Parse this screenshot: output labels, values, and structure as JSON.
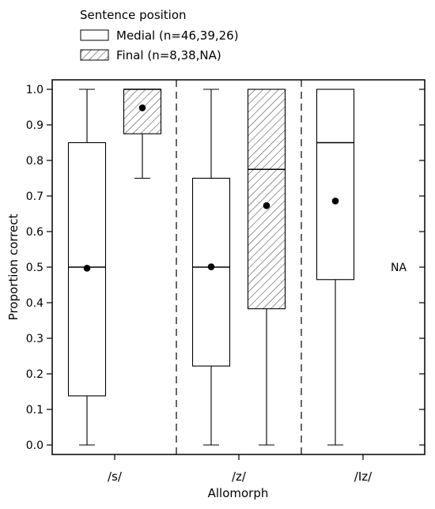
{
  "chart_data": {
    "type": "boxplot",
    "ylabel": "Proportion correct",
    "xlabel": "Allomorph",
    "ylim": [
      0,
      1
    ],
    "yticks": [
      0.0,
      0.1,
      0.2,
      0.3,
      0.4,
      0.5,
      0.6,
      0.7,
      0.8,
      0.9,
      1.0
    ],
    "ytick_labels": [
      "0.0",
      "0.1",
      "0.2",
      "0.3",
      "0.4",
      "0.5",
      "0.6",
      "0.7",
      "0.8",
      "0.9",
      "1.0"
    ],
    "categories": [
      "/s/",
      "/z/",
      "/Iz/"
    ],
    "legend": {
      "title": "Sentence position",
      "entries": [
        {
          "label": "Medial (n=46,39,26)",
          "fill": "none"
        },
        {
          "label": "Final (n=8,38,NA)",
          "fill": "hatched"
        }
      ]
    },
    "series": [
      {
        "boxes": [
          {
            "min": 0.0,
            "q1": 0.138,
            "median": 0.5,
            "q3": 0.85,
            "max": 1.0,
            "mean": 0.497
          },
          {
            "min": 0.0,
            "q1": 0.222,
            "median": 0.5,
            "q3": 0.75,
            "max": 1.0,
            "mean": 0.501
          },
          {
            "min": 0.0,
            "q1": 0.465,
            "median": 0.85,
            "q3": 1.0,
            "max": 1.0,
            "mean": 0.686
          }
        ]
      },
      {
        "boxes": [
          {
            "min": 0.75,
            "q1": 0.875,
            "median": 1.0,
            "q3": 1.0,
            "max": 1.0,
            "mean": 0.948
          },
          {
            "min": 0.0,
            "q1": 0.383,
            "median": 0.775,
            "q3": 1.0,
            "max": 1.0,
            "mean": 0.673
          },
          null
        ],
        "missing_label": "NA"
      }
    ]
  }
}
